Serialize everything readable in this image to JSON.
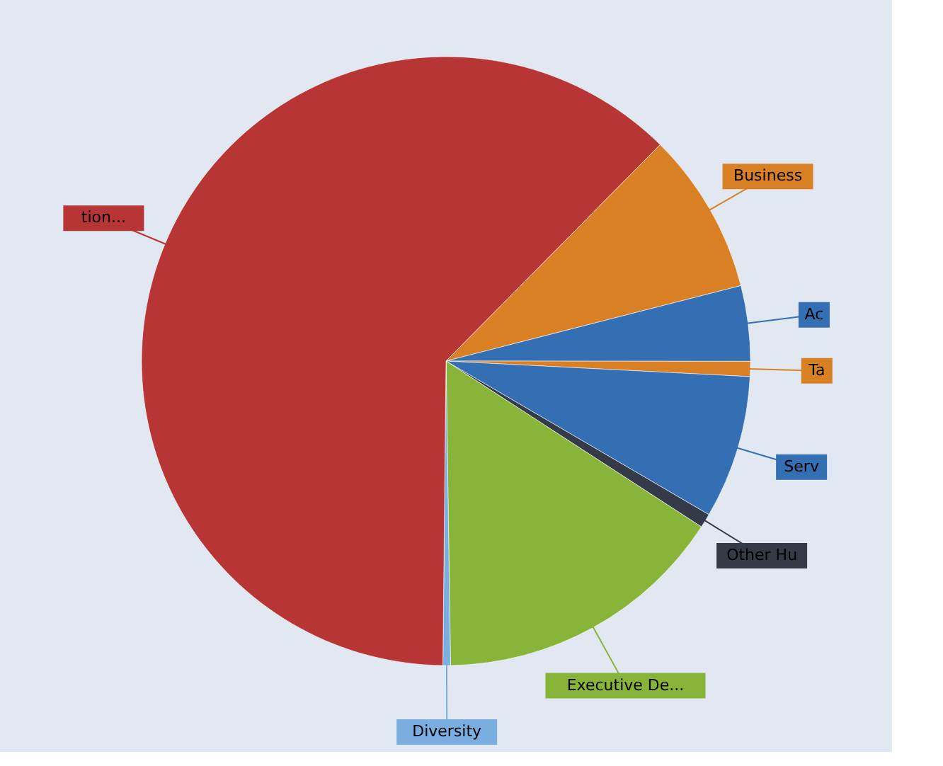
{
  "chart_data": {
    "type": "pie",
    "categories": [
      "Business",
      "Ac",
      "Ta",
      "Serv",
      "Other Hu",
      "Executive De...",
      "Diversity",
      "tion..."
    ],
    "values": [
      8.6,
      4,
      0.8,
      7.6,
      0.75,
      15.6,
      0.4,
      62.25
    ],
    "colors": [
      "#d98025",
      "#356fb3",
      "#d98025",
      "#356fb3",
      "#353a48",
      "#88b43a",
      "#7aaee0",
      "#b83535"
    ],
    "legend": false
  }
}
